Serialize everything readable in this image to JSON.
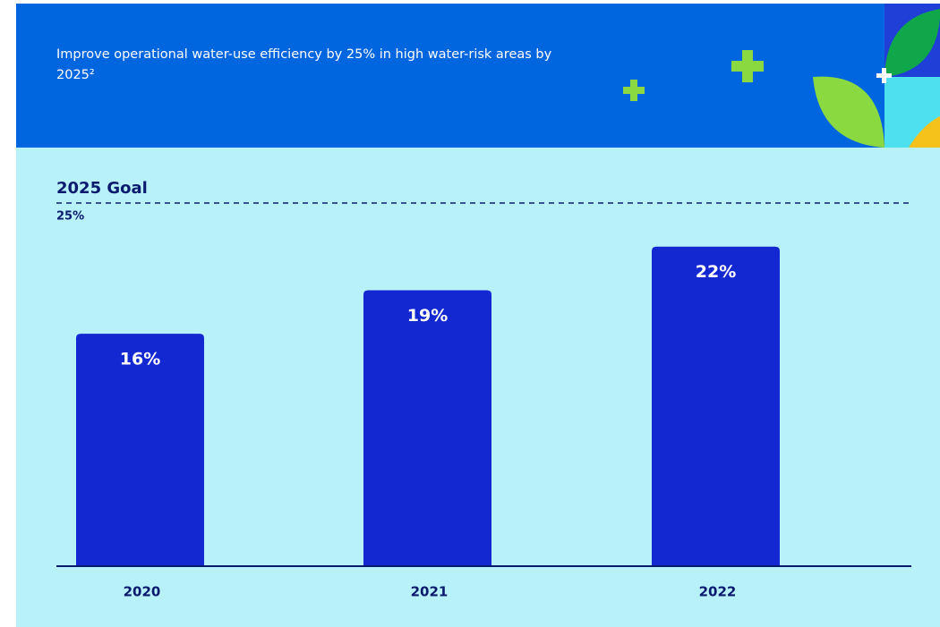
{
  "chart_data": {
    "type": "bar",
    "title": "Improve operational water-use efficiency by 25% in high water-risk areas by 2025²",
    "categories": [
      "2020",
      "2021",
      "2022"
    ],
    "values": [
      16,
      19,
      22
    ],
    "value_labels": [
      "16%",
      "19%",
      "22%"
    ],
    "color": "#1428d2",
    "goal": {
      "label": "2025 Goal",
      "value": 25,
      "value_label": "25%"
    },
    "ylim": [
      0,
      25
    ]
  }
}
